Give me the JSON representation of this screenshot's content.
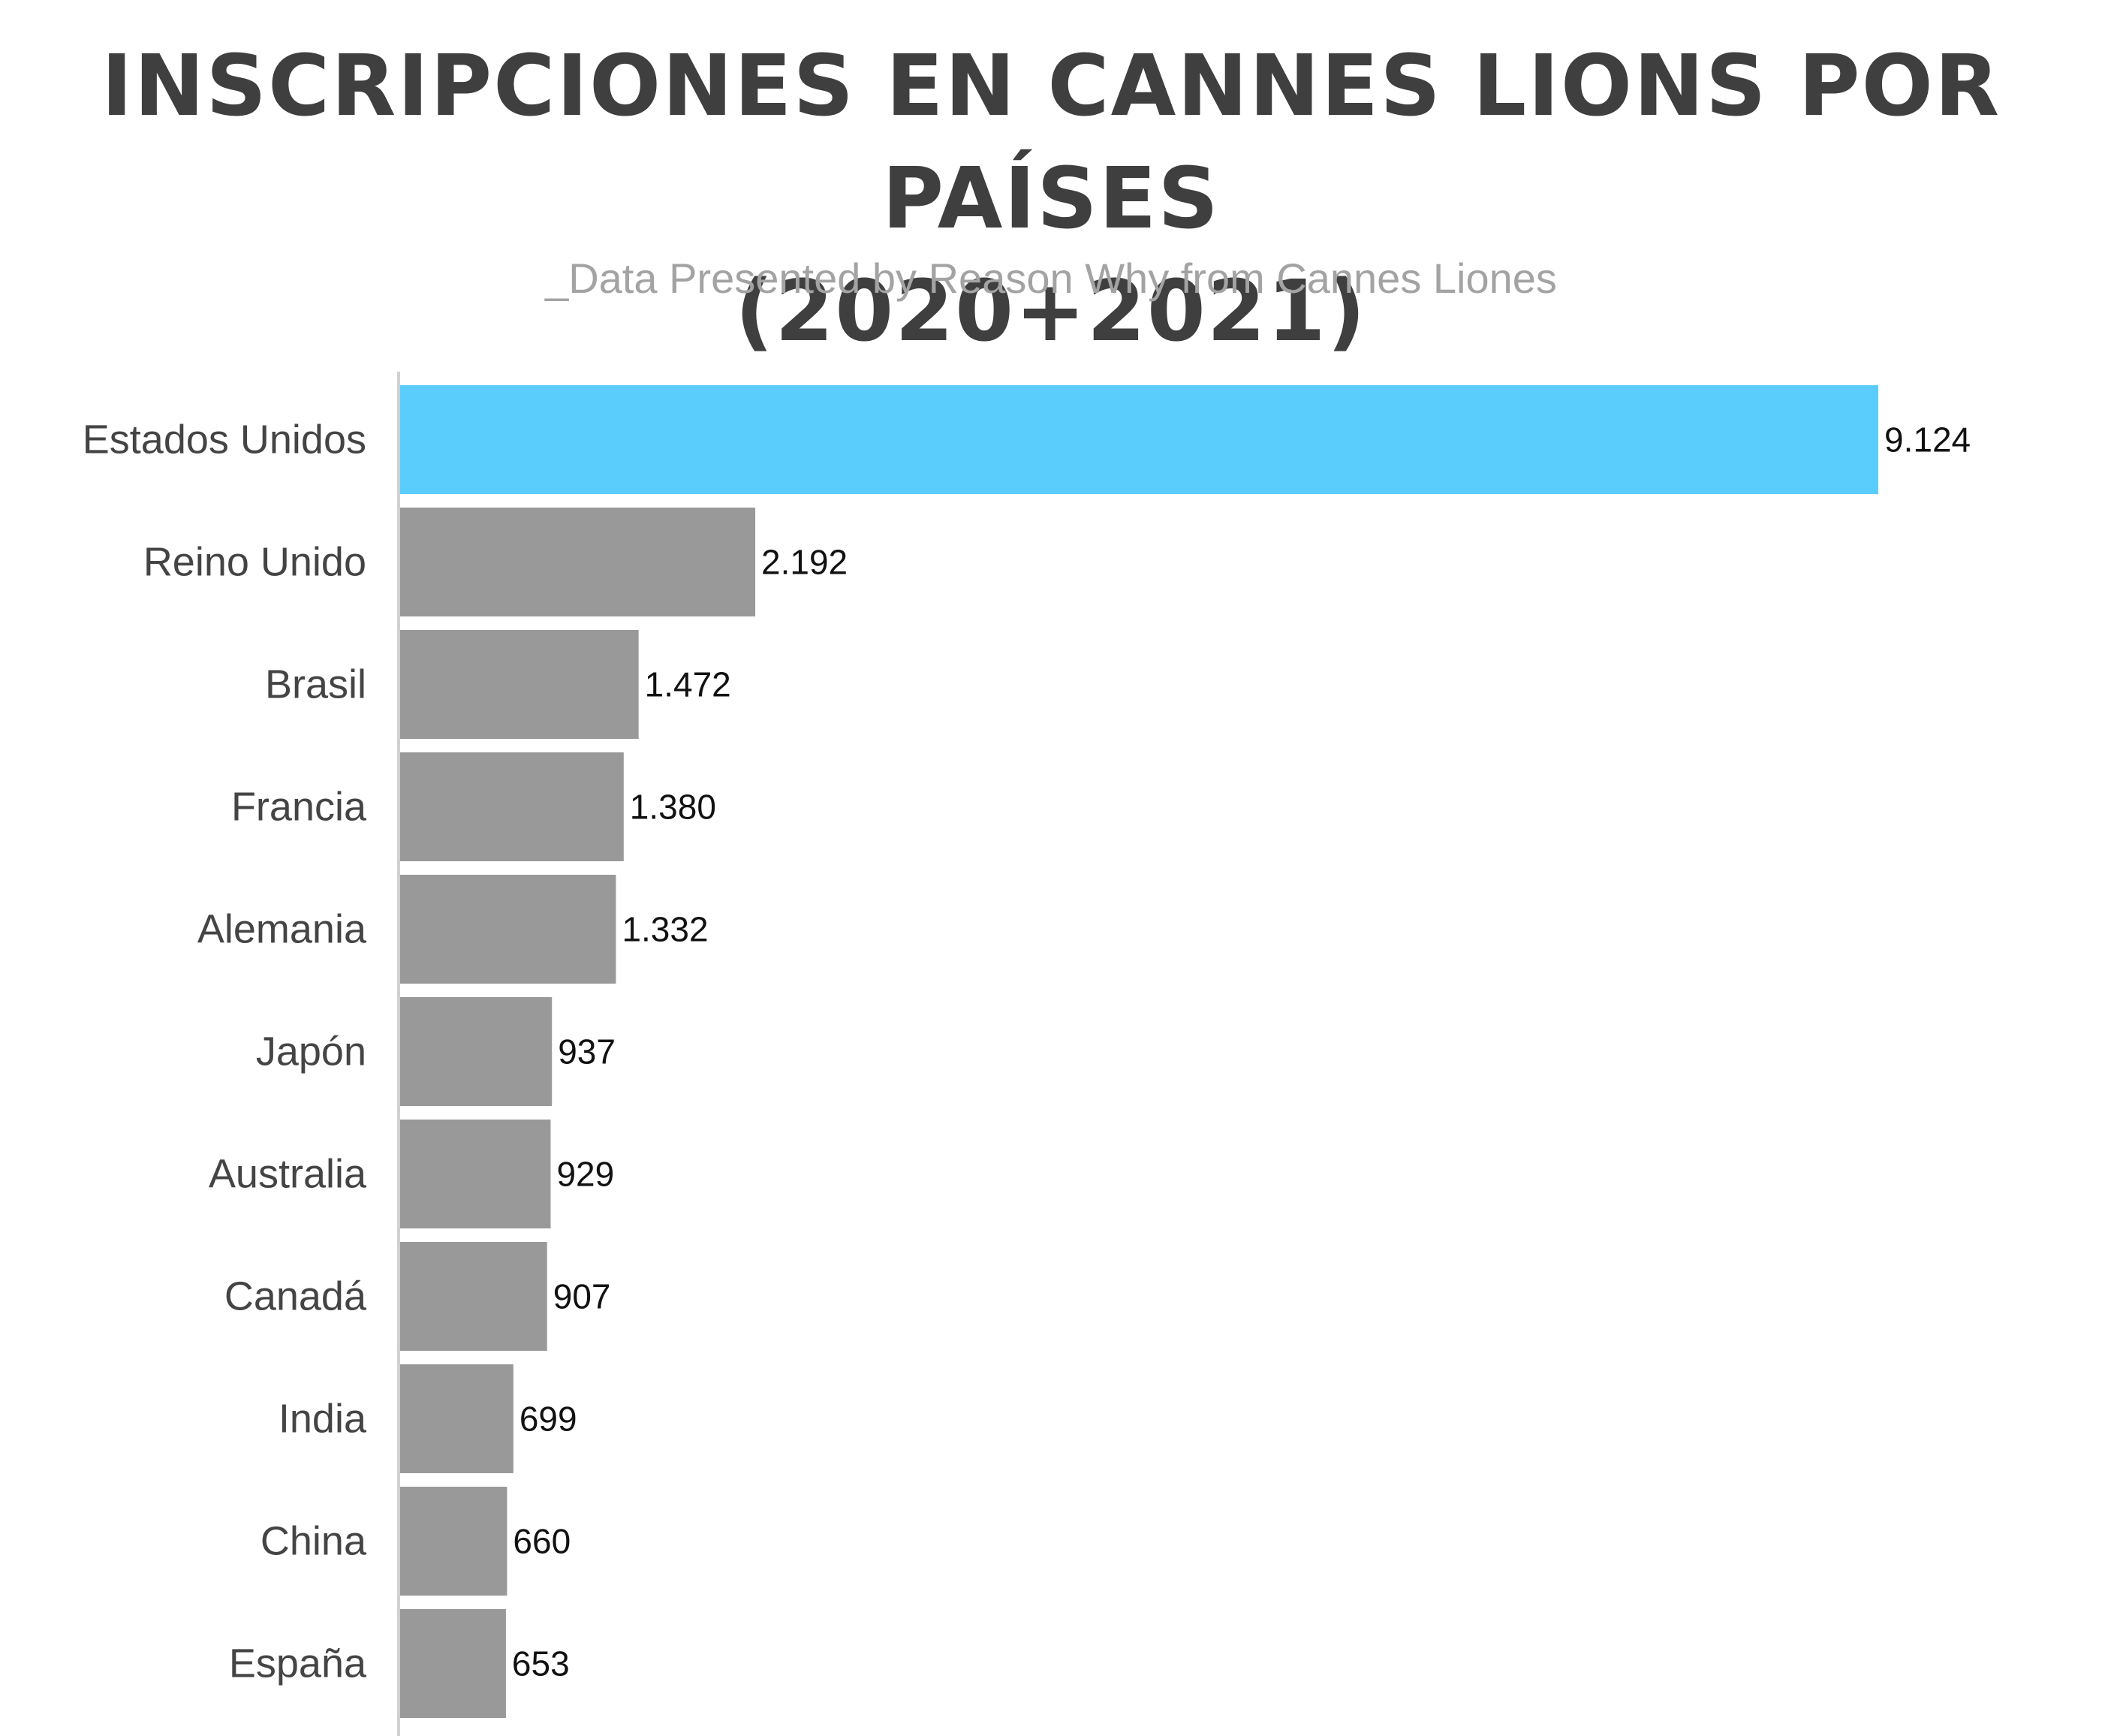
{
  "chart_data": {
    "type": "bar",
    "orientation": "horizontal",
    "title_lines": [
      "INSCRIPCIONES EN CANNES LIONS POR PAÍSES",
      "(2020+2021)"
    ],
    "subtitle": "_Data Presented by Reason Why from Cannes Liones",
    "categories": [
      "Estados Unidos",
      "Reino Unido",
      "Brasil",
      "Francia",
      "Alemania",
      "Japón",
      "Australia",
      "Canadá",
      "India",
      "China",
      "España"
    ],
    "values": [
      9124,
      2192,
      1472,
      1380,
      1332,
      937,
      929,
      907,
      699,
      660,
      653
    ],
    "value_labels": [
      "9.124",
      "2.192",
      "1.472",
      "1.380",
      "1.332",
      "937",
      "929",
      "907",
      "699",
      "660",
      "653"
    ],
    "xlim": [
      0,
      9124
    ],
    "grid": false,
    "legend": "none",
    "colors": {
      "highlight": "#5bcdfc",
      "default": "#999999",
      "axis": "#d0d0d0",
      "title": "#3f3f3f",
      "subtitle": "#a3a3a3"
    }
  }
}
